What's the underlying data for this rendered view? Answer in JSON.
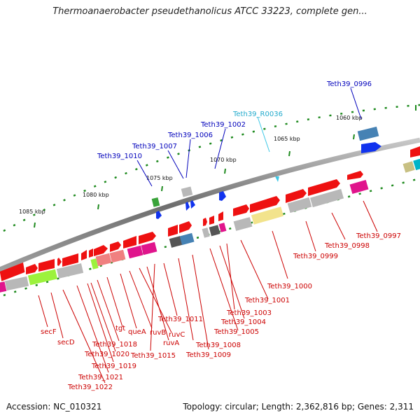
{
  "title": "Thermoanaerobacter pseudethanolicus ATCC 33223, complete gen...",
  "footer": {
    "accession": "Accession: NC_010321",
    "topology": "Topology: circular; Length: 2,362,816 bp; Genes: 2,311"
  },
  "kbp_labels": [
    "1085 kbp",
    "1080 kbp",
    "1075 kbp",
    "1070 kbp",
    "1065 kbp",
    "1060 kbp"
  ],
  "upper_labels": [
    "Teth39_1010",
    "Teth39_1007",
    "Teth39_1006",
    "Teth39_1002",
    "Teth39_R0036",
    "Teth39_0996"
  ],
  "lower_labels": [
    "secF",
    "secD",
    "Teth39_1022",
    "Teth39_1021",
    "Teth39_1019",
    "Teth39_1020",
    "Teth39_1018",
    "tgt",
    "queA",
    "ruvB",
    "ruvC",
    "ruvA",
    "Teth39_1015",
    "Teth39_1011",
    "Teth39_1008",
    "Teth39_1009",
    "Teth39_1005",
    "Teth39_1004",
    "Teth39_1003",
    "Teth39_1001",
    "Teth39_1000",
    "Teth39_0999",
    "Teth39_0998",
    "Teth39_0997"
  ],
  "colors": {
    "backbone": "#7a7a7a",
    "forward_gene": "#ee1111",
    "reverse_gene": "#1133ee",
    "rna_gene": "#3fc8e6",
    "upper_label": "#0000bb",
    "rna_label": "#22aacc",
    "lower_label": "#cc0000",
    "tick": "#1e8a1e"
  }
}
